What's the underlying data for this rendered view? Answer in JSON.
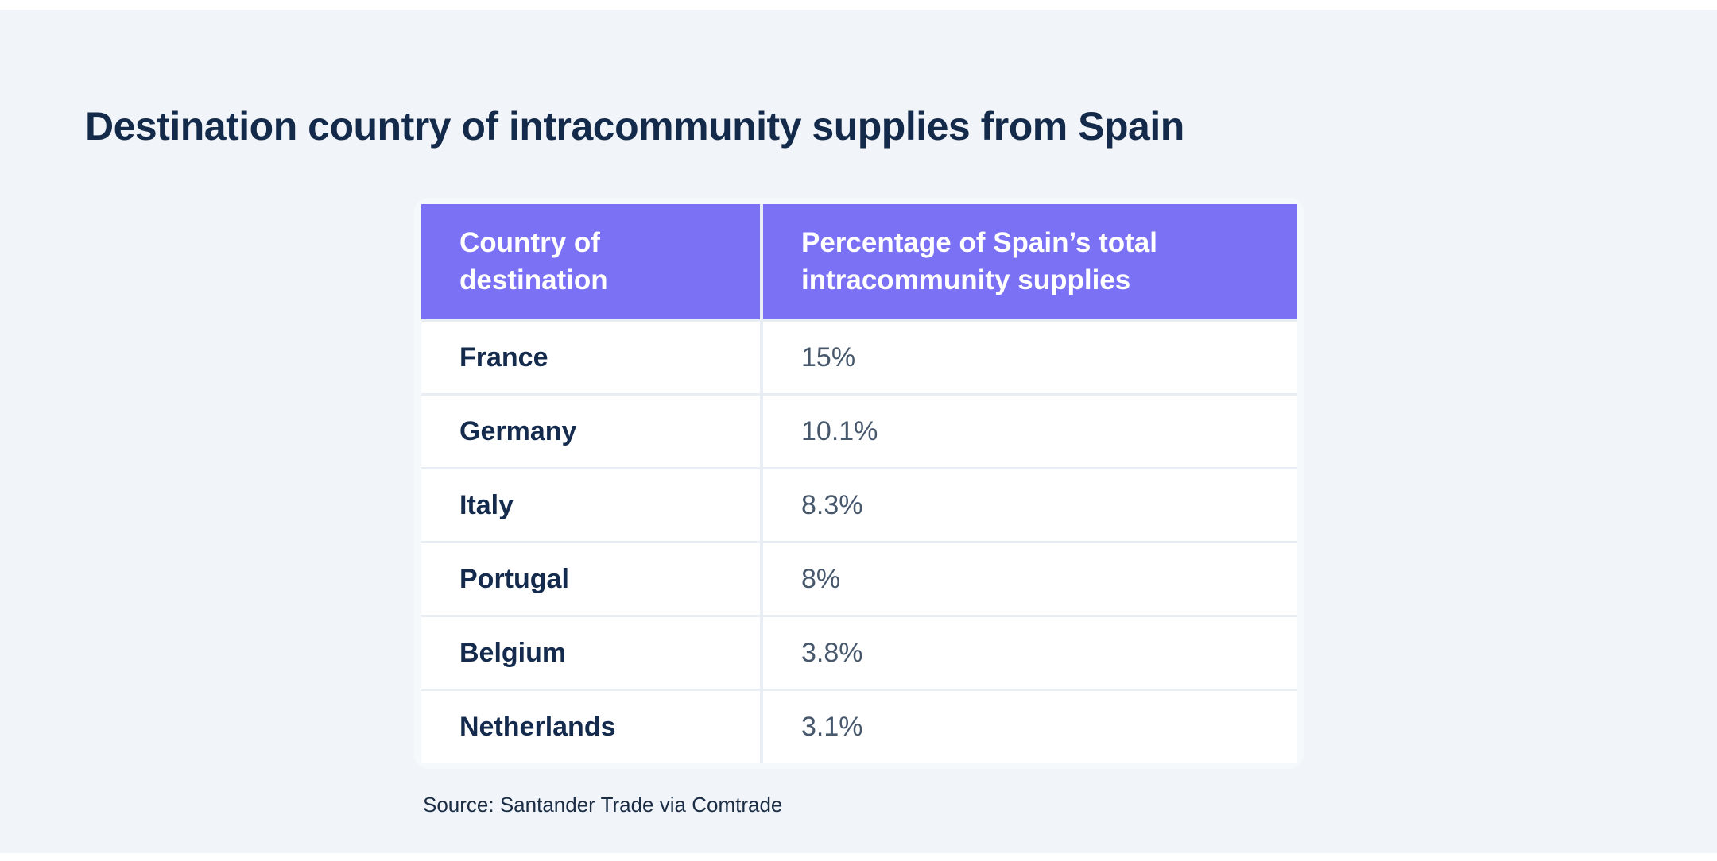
{
  "page": {
    "title": "Destination country of intracommunity supplies from Spain",
    "source": "Source: Santander Trade via Comtrade"
  },
  "table": {
    "columns": [
      "Country of destination",
      "Percentage of Spain’s total intracommunity supplies"
    ],
    "rows": [
      {
        "country": "France",
        "value": "15%"
      },
      {
        "country": "Germany",
        "value": "10.1%"
      },
      {
        "country": "Italy",
        "value": "8.3%"
      },
      {
        "country": "Portugal",
        "value": "8%"
      },
      {
        "country": "Belgium",
        "value": "3.8%"
      },
      {
        "country": "Netherlands",
        "value": "3.1%"
      }
    ]
  },
  "colors": {
    "page_background": "#F1F5F9",
    "header_background": "#7B71F5",
    "header_text": "#FFFFFF",
    "row_background": "#FFFFFF",
    "divider": "#E9EEF5",
    "title_text": "#132A4A",
    "country_text": "#142B4D",
    "percentage_text": "#47586D"
  },
  "chart_data": {
    "type": "table",
    "title": "Destination country of intracommunity supplies from Spain",
    "columns": [
      "Country of destination",
      "Percentage of Spain’s total intracommunity supplies"
    ],
    "categories": [
      "France",
      "Germany",
      "Italy",
      "Portugal",
      "Belgium",
      "Netherlands"
    ],
    "values_percent": [
      15,
      10.1,
      8.3,
      8,
      3.8,
      3.1
    ],
    "rows": [
      [
        "France",
        "15%"
      ],
      [
        "Germany",
        "10.1%"
      ],
      [
        "Italy",
        "8.3%"
      ],
      [
        "Portugal",
        "8%"
      ],
      [
        "Belgium",
        "3.8%"
      ],
      [
        "Netherlands",
        "3.1%"
      ]
    ],
    "source": "Source: Santander Trade via Comtrade",
    "legend": false,
    "grid": false
  }
}
